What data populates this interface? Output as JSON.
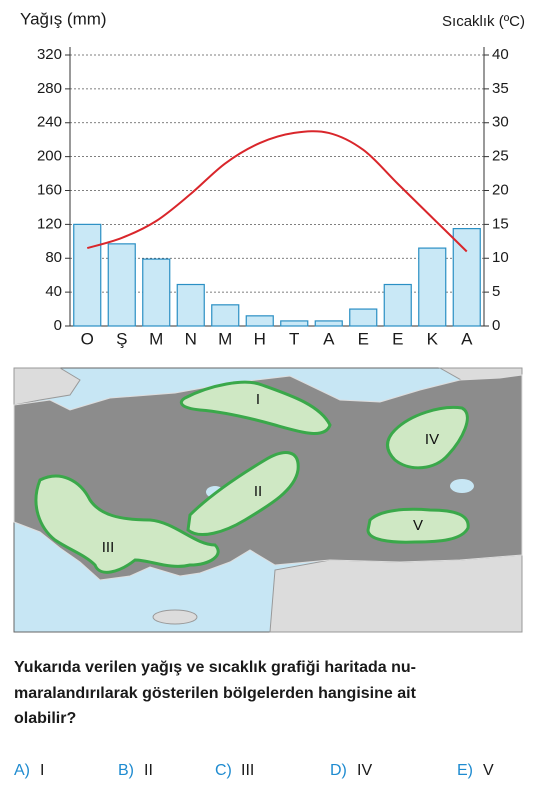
{
  "chart_data": {
    "type": "bar",
    "y_axis_title": "Yağış (mm)",
    "y2_axis_title": "Sıcaklık (ºC)",
    "categories": [
      "O",
      "Ş",
      "M",
      "N",
      "M",
      "H",
      "T",
      "A",
      "E",
      "E",
      "K",
      "A"
    ],
    "series": [
      {
        "type": "bar",
        "color": "#c9e8f6",
        "values": [
          120,
          97,
          79,
          49,
          25,
          12,
          6,
          6,
          20,
          49,
          92,
          115
        ]
      },
      {
        "type": "line",
        "axis": "y2",
        "color": "#d9262b",
        "values": [
          11.5,
          13,
          15.5,
          19.5,
          24,
          27,
          28.5,
          28.5,
          26,
          21,
          16,
          11
        ]
      }
    ],
    "ylim": [
      0,
      320
    ],
    "yticks": [
      0,
      40,
      80,
      120,
      160,
      200,
      240,
      280,
      320
    ],
    "y2lim": [
      0,
      40
    ],
    "y2ticks": [
      0,
      5,
      10,
      15,
      20,
      25,
      30,
      35,
      40
    ],
    "grid": true
  },
  "map": {
    "labels": [
      "I",
      "II",
      "III",
      "IV",
      "V"
    ]
  },
  "question": {
    "lines": [
      "Yukarıda verilen yağış ve sıcaklık grafiği haritada nu-",
      "maralandırılarak gösterilen bölgelerden hangisine ait",
      "olabilir?"
    ]
  },
  "options": [
    {
      "letter": "A)",
      "text": "I"
    },
    {
      "letter": "B)",
      "text": "II"
    },
    {
      "letter": "C)",
      "text": "III"
    },
    {
      "letter": "D)",
      "text": "IV"
    },
    {
      "letter": "E)",
      "text": "V"
    }
  ]
}
